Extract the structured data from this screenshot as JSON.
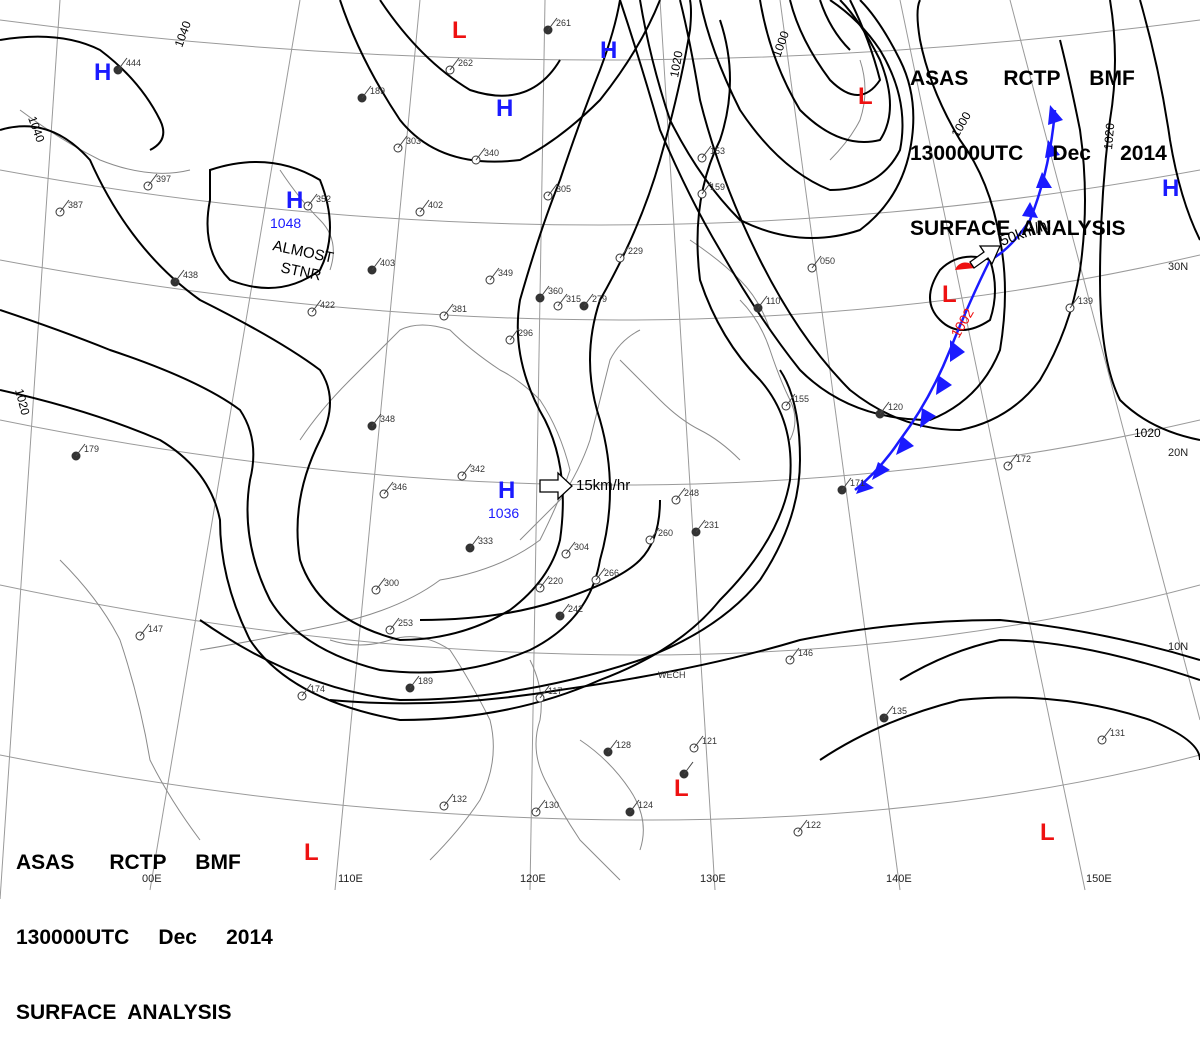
{
  "header": {
    "line1": "ASAS      RCTP     BMF",
    "line2": "130000UTC     Dec     2014",
    "line3": "SURFACE  ANALYSIS"
  },
  "header_bottom": {
    "line1": "ASAS      RCTP     BMF",
    "line2": "130000UTC     Dec     2014",
    "line3": "SURFACE  ANALYSIS"
  },
  "colors": {
    "high": "#1a1aff",
    "low": "#ee1111",
    "front": "#1a1aff",
    "isobar": "#000000",
    "coast": "#888888",
    "grid": "#999999"
  },
  "isobar_labels": [
    "1040",
    "1040",
    "1040",
    "1020",
    "1020",
    "1020",
    "1020",
    "1000",
    "1000"
  ],
  "longitudes": [
    "110E",
    "120E",
    "130E",
    "140E",
    "150E"
  ],
  "latitudes": [
    "30N",
    "20N",
    "10N"
  ],
  "lon_first_partial": "00E",
  "systems": [
    {
      "type": "H",
      "pressure": ""
    },
    {
      "type": "H",
      "pressure": ""
    },
    {
      "type": "H",
      "pressure": ""
    },
    {
      "type": "H",
      "pressure": "1048"
    },
    {
      "type": "H",
      "pressure": "1036"
    },
    {
      "type": "H",
      "pressure": ""
    },
    {
      "type": "L",
      "pressure": ""
    },
    {
      "type": "L",
      "pressure": ""
    },
    {
      "type": "L",
      "pressure": "1002"
    },
    {
      "type": "L",
      "pressure": ""
    },
    {
      "type": "L",
      "pressure": ""
    },
    {
      "type": "L",
      "pressure": ""
    }
  ],
  "annotations": {
    "almost": "ALMOST",
    "stnr": "STNR",
    "motion_high": "15km/hr",
    "motion_low": "50km/hr",
    "wech": "WECH"
  },
  "station_values": [
    "444",
    "397",
    "387",
    "438",
    "352",
    "402",
    "403",
    "422",
    "262",
    "189",
    "303",
    "340",
    "261",
    "381",
    "349",
    "360",
    "315",
    "296",
    "279",
    "229",
    "305",
    "348",
    "342",
    "346",
    "333",
    "300",
    "253",
    "189",
    "174",
    "147",
    "179",
    "153",
    "159",
    "110",
    "050",
    "155",
    "120",
    "172",
    "139",
    "171",
    "248",
    "260",
    "231",
    "304",
    "266",
    "242",
    "220",
    "146",
    "135",
    "121",
    "117",
    "128",
    "132",
    "130",
    "124",
    "122",
    "131"
  ]
}
